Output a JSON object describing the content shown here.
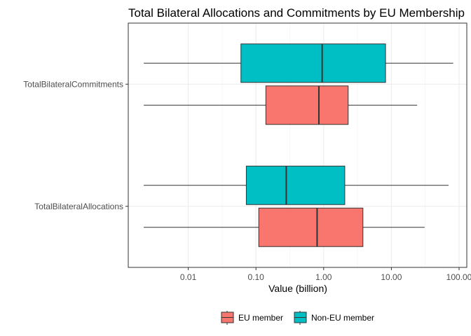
{
  "chart_data": {
    "type": "boxplot",
    "orientation": "horizontal",
    "title": "Total Bilateral Allocations and Commitments by EU Membership",
    "xlabel": "Value (billion)",
    "ylabel": "",
    "x_scale": "log10",
    "xlim": [
      0.0013,
      130
    ],
    "x_ticks": [
      0.01,
      0.1,
      1,
      10,
      100
    ],
    "x_tick_labels": [
      "0.01",
      "0.10",
      "1.00",
      "10.00",
      "100.00"
    ],
    "categories": [
      "TotalBilateralCommitments",
      "TotalBilateralAllocations"
    ],
    "grid": true,
    "legend_position": "bottom",
    "series": [
      {
        "name": "EU member",
        "color": "#F8766D",
        "boxes": [
          {
            "category": "TotalBilateralCommitments",
            "min": 0.0022,
            "q1": 0.14,
            "median": 0.85,
            "q3": 2.3,
            "max": 24
          },
          {
            "category": "TotalBilateralAllocations",
            "min": 0.0022,
            "q1": 0.11,
            "median": 0.8,
            "q3": 3.8,
            "max": 31
          }
        ]
      },
      {
        "name": "Non-EU member",
        "color": "#00BFC4",
        "boxes": [
          {
            "category": "TotalBilateralCommitments",
            "min": 0.0022,
            "q1": 0.06,
            "median": 0.95,
            "q3": 8.2,
            "max": 82
          },
          {
            "category": "TotalBilateralAllocations",
            "min": 0.0022,
            "q1": 0.072,
            "median": 0.28,
            "q3": 2.05,
            "max": 70
          }
        ]
      }
    ]
  }
}
